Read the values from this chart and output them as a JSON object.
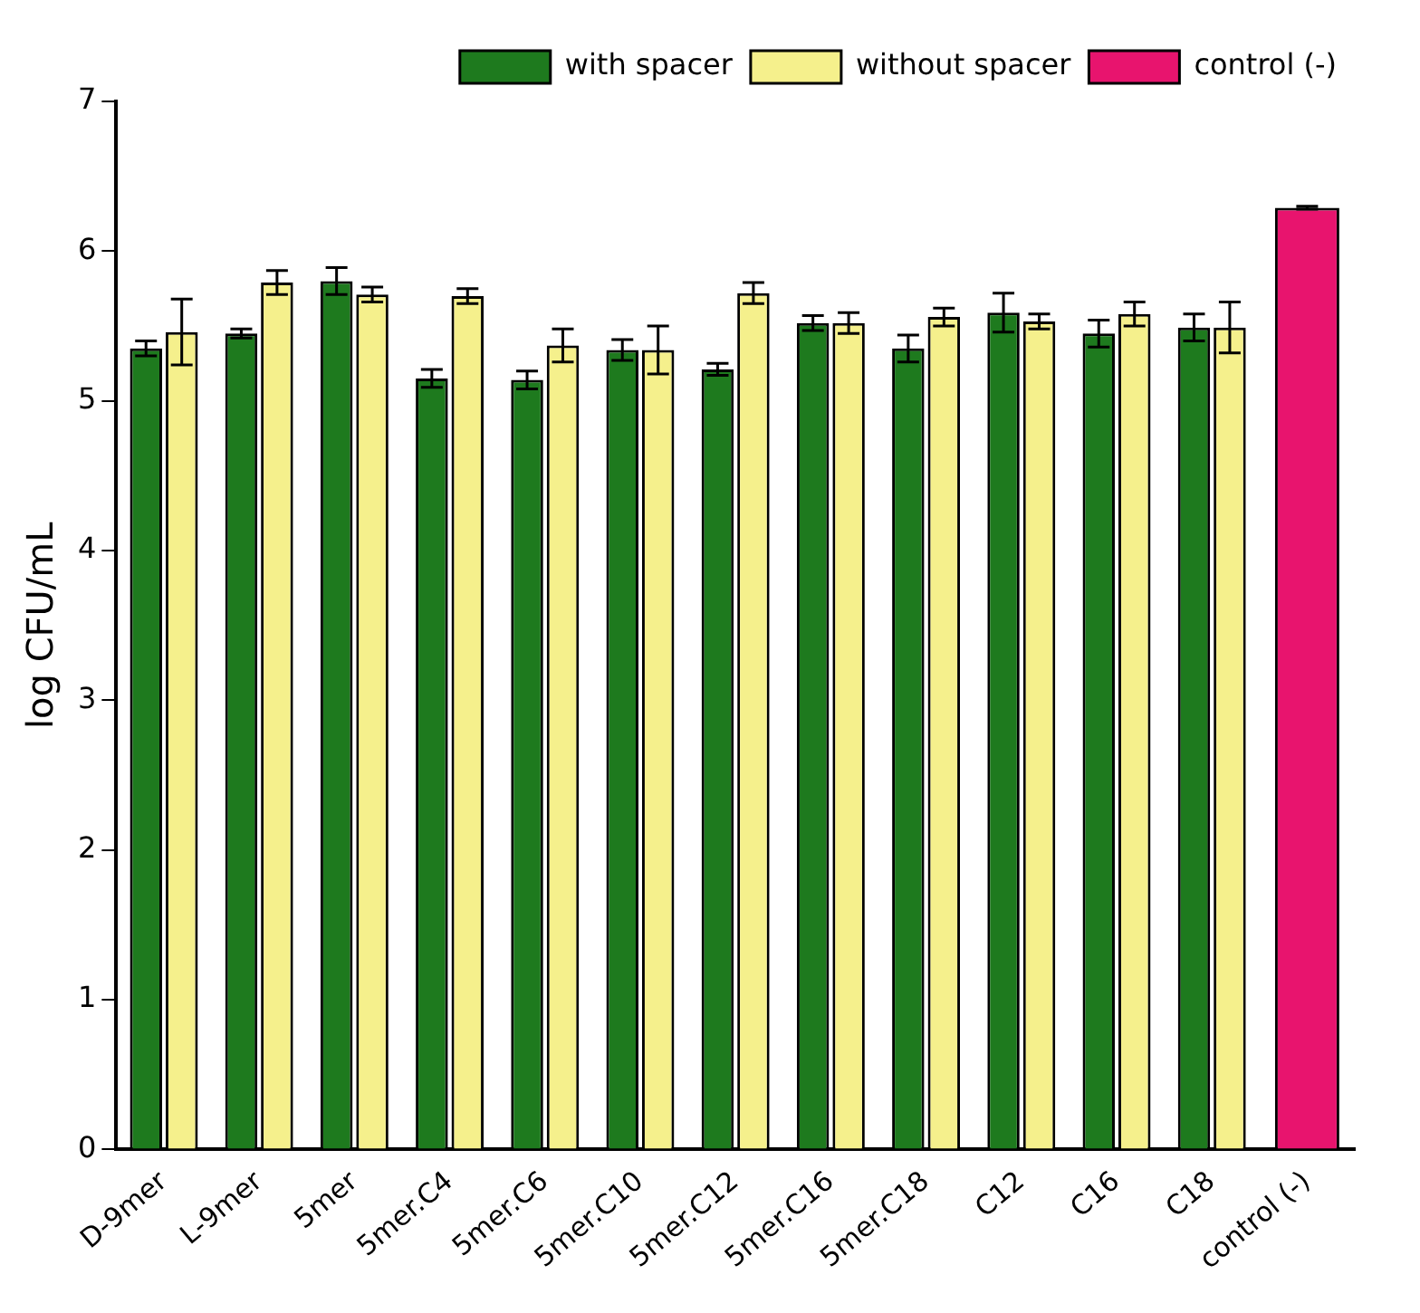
{
  "chart_data": {
    "type": "bar",
    "ylabel": "log CFU/mL",
    "categories": [
      "D-9mer",
      "L-9mer",
      "5mer",
      "5mer.C4",
      "5mer.C6",
      "5mer.C10",
      "5mer.C12",
      "5mer.C16",
      "5mer.C18",
      "C12",
      "C16",
      "C18",
      "control (-)"
    ],
    "series": [
      {
        "name": "with spacer",
        "color": "#1e7a1e",
        "values": [
          5.35,
          5.45,
          5.8,
          5.15,
          5.14,
          5.34,
          5.21,
          5.52,
          5.35,
          5.59,
          5.45,
          5.49,
          null
        ],
        "errors": [
          0.05,
          0.03,
          0.09,
          0.06,
          0.06,
          0.07,
          0.04,
          0.05,
          0.09,
          0.13,
          0.09,
          0.09,
          null
        ]
      },
      {
        "name": "without spacer",
        "color": "#f5f08c",
        "values": [
          5.46,
          5.79,
          5.71,
          5.7,
          5.37,
          5.34,
          5.72,
          5.52,
          5.56,
          5.53,
          5.58,
          5.49,
          null
        ],
        "errors": [
          0.22,
          0.08,
          0.05,
          0.05,
          0.11,
          0.16,
          0.07,
          0.07,
          0.06,
          0.05,
          0.08,
          0.17,
          null
        ]
      },
      {
        "name": "control (-)",
        "color": "#e8146e",
        "values": [
          null,
          null,
          null,
          null,
          null,
          null,
          null,
          null,
          null,
          null,
          null,
          null,
          6.29
        ],
        "errors": [
          null,
          null,
          null,
          null,
          null,
          null,
          null,
          null,
          null,
          null,
          null,
          null,
          0.01
        ]
      }
    ],
    "ylim": [
      0,
      7
    ],
    "yticks": [
      0,
      1,
      2,
      3,
      4,
      5,
      6,
      7
    ],
    "grid": false,
    "legend": "top right"
  }
}
